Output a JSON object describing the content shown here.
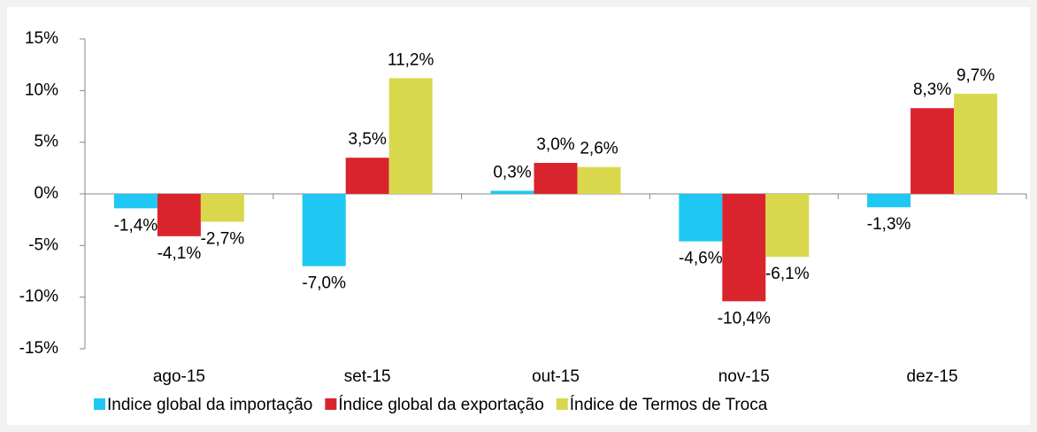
{
  "chart_data": {
    "type": "bar",
    "categories": [
      "ago-15",
      "set-15",
      "out-15",
      "nov-15",
      "dez-15"
    ],
    "series": [
      {
        "name": "Indice global da importação",
        "color": "#1fc8f2",
        "values": [
          -1.4,
          -7.0,
          0.3,
          -4.6,
          -1.3
        ],
        "value_labels": [
          "-1,4%",
          "-7,0%",
          "0,3%",
          "-4,6%",
          "-1,3%"
        ]
      },
      {
        "name": "Índice global da exportação",
        "color": "#d9242e",
        "values": [
          -4.1,
          3.5,
          3.0,
          -10.4,
          8.3
        ],
        "value_labels": [
          "-4,1%",
          "3,5%",
          "3,0%",
          "-10,4%",
          "8,3%"
        ]
      },
      {
        "name": "Índice de Termos de Troca",
        "color": "#d9d84c",
        "values": [
          -2.7,
          11.2,
          2.6,
          -6.1,
          9.7
        ],
        "value_labels": [
          "-2,7%",
          "11,2%",
          "2,6%",
          "-6,1%",
          "9,7%"
        ]
      }
    ],
    "ylim": [
      -15,
      15
    ],
    "yticks": [
      {
        "value": -15,
        "label": "-15%"
      },
      {
        "value": -10,
        "label": "-10%"
      },
      {
        "value": -5,
        "label": "-5%"
      },
      {
        "value": 0,
        "label": "0%"
      },
      {
        "value": 5,
        "label": "5%"
      },
      {
        "value": 10,
        "label": "10%"
      },
      {
        "value": 15,
        "label": "15%"
      }
    ],
    "legend": "bottom"
  }
}
